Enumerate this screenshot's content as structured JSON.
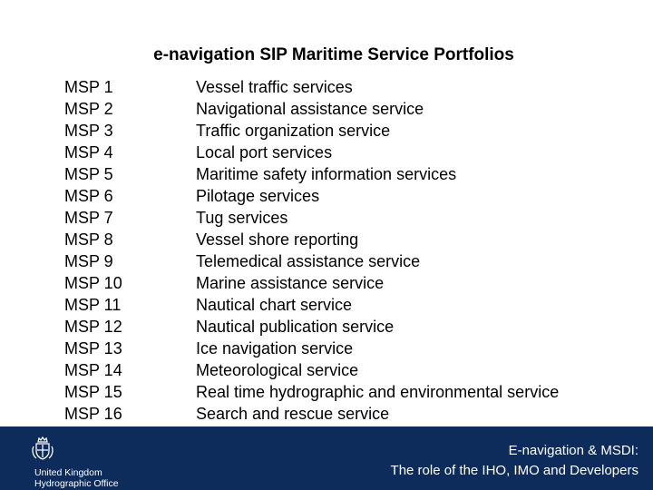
{
  "slide": {
    "title": "e-navigation SIP Maritime Service Portfolios"
  },
  "portfolios": [
    {
      "code": "MSP 1",
      "service": "Vessel traffic services"
    },
    {
      "code": "MSP 2",
      "service": "Navigational assistance service"
    },
    {
      "code": "MSP 3",
      "service": "Traffic organization service"
    },
    {
      "code": "MSP 4",
      "service": "Local port services"
    },
    {
      "code": "MSP 5",
      "service": "Maritime safety information services"
    },
    {
      "code": "MSP 6",
      "service": "Pilotage services"
    },
    {
      "code": "MSP 7",
      "service": "Tug services"
    },
    {
      "code": "MSP 8",
      "service": "Vessel shore reporting"
    },
    {
      "code": "MSP 9",
      "service": "Telemedical assistance service"
    },
    {
      "code": "MSP 10",
      "service": "Marine assistance service"
    },
    {
      "code": "MSP 11",
      "service": "Nautical chart service"
    },
    {
      "code": "MSP 12",
      "service": "Nautical publication service"
    },
    {
      "code": "MSP 13",
      "service": "Ice navigation service"
    },
    {
      "code": "MSP 14",
      "service": "Meteorological service"
    },
    {
      "code": "MSP 15",
      "service": "Real time hydrographic and environmental service"
    },
    {
      "code": "MSP 16",
      "service": "Search and rescue service"
    }
  ],
  "footer": {
    "org_line1": "United Kingdom",
    "org_line2": "Hydrographic Office",
    "caption_line1": "E-navigation & MSDI:",
    "caption_line2": "The role of the IHO, IMO and Developers",
    "background_color": "#0d2c5c",
    "logo_icon": "royal-crest-icon"
  }
}
